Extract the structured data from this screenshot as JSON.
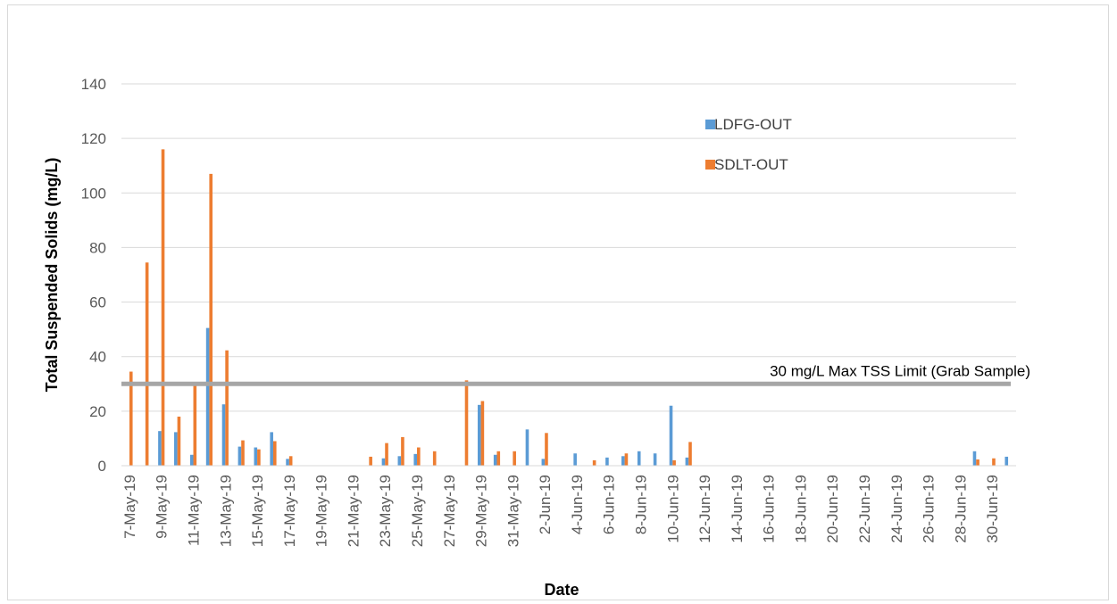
{
  "chart_data": {
    "type": "bar",
    "title": "",
    "xlabel": "Date",
    "ylabel": "Total Suspended Solids (mg/L)",
    "ylim": [
      0,
      140
    ],
    "yticks": [
      0,
      20,
      40,
      60,
      80,
      100,
      120,
      140
    ],
    "grid": true,
    "legend_position": "top-right",
    "categories": [
      "7-May-19",
      "8-May-19",
      "9-May-19",
      "10-May-19",
      "11-May-19",
      "12-May-19",
      "13-May-19",
      "14-May-19",
      "15-May-19",
      "16-May-19",
      "17-May-19",
      "18-May-19",
      "19-May-19",
      "20-May-19",
      "21-May-19",
      "22-May-19",
      "23-May-19",
      "24-May-19",
      "25-May-19",
      "26-May-19",
      "27-May-19",
      "28-May-19",
      "29-May-19",
      "30-May-19",
      "31-May-19",
      "1-Jun-19",
      "2-Jun-19",
      "3-Jun-19",
      "4-Jun-19",
      "5-Jun-19",
      "6-Jun-19",
      "7-Jun-19",
      "8-Jun-19",
      "9-Jun-19",
      "10-Jun-19",
      "11-Jun-19",
      "12-Jun-19",
      "13-Jun-19",
      "14-Jun-19",
      "15-Jun-19",
      "16-Jun-19",
      "17-Jun-19",
      "18-Jun-19",
      "19-Jun-19",
      "20-Jun-19",
      "21-Jun-19",
      "22-Jun-19",
      "23-Jun-19",
      "24-Jun-19",
      "25-Jun-19",
      "26-Jun-19",
      "27-Jun-19",
      "28-Jun-19",
      "29-Jun-19",
      "30-Jun-19",
      "1-Jul-19"
    ],
    "tick_labels": [
      "7-May-19",
      "9-May-19",
      "11-May-19",
      "13-May-19",
      "15-May-19",
      "17-May-19",
      "19-May-19",
      "21-May-19",
      "23-May-19",
      "25-May-19",
      "27-May-19",
      "29-May-19",
      "31-May-19",
      "2-Jun-19",
      "4-Jun-19",
      "6-Jun-19",
      "8-Jun-19",
      "10-Jun-19",
      "12-Jun-19",
      "14-Jun-19",
      "16-Jun-19",
      "18-Jun-19",
      "20-Jun-19",
      "22-Jun-19",
      "24-Jun-19",
      "26-Jun-19",
      "28-Jun-19",
      "30-Jun-19"
    ],
    "series": [
      {
        "name": "LDFG-OUT",
        "color": "#5b9bd5",
        "values": [
          null,
          null,
          12.7,
          12.3,
          4,
          50.5,
          22.5,
          7,
          6.7,
          12.3,
          2.5,
          null,
          null,
          null,
          null,
          null,
          2.7,
          3.5,
          4.3,
          null,
          null,
          null,
          22.3,
          4,
          null,
          13.3,
          2.5,
          null,
          4.5,
          null,
          3,
          3.5,
          5.3,
          4.5,
          22,
          3,
          null,
          null,
          null,
          null,
          null,
          null,
          null,
          null,
          null,
          null,
          null,
          null,
          null,
          null,
          null,
          null,
          null,
          5.3,
          null,
          3.3
        ]
      },
      {
        "name": "SDLT-OUT",
        "color": "#ed7d31",
        "values": [
          34.5,
          74.5,
          116,
          18,
          30,
          107,
          42.3,
          9.3,
          6,
          9,
          3.5,
          null,
          null,
          null,
          null,
          3.3,
          8.3,
          10.5,
          6.7,
          5.3,
          null,
          31.3,
          23.7,
          5.3,
          5.3,
          null,
          12,
          null,
          null,
          2,
          null,
          4.5,
          null,
          null,
          2,
          8.7,
          null,
          null,
          null,
          null,
          null,
          null,
          null,
          null,
          null,
          null,
          null,
          null,
          null,
          null,
          null,
          null,
          null,
          2.3,
          2.7,
          null
        ]
      }
    ],
    "reference_line": {
      "value": 30,
      "label": "30 mg/L Max TSS Limit (Grab Sample)",
      "color": "#a6a6a6"
    }
  }
}
